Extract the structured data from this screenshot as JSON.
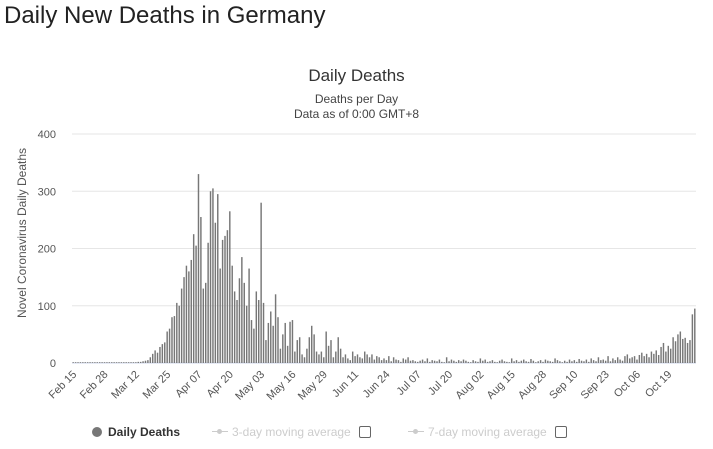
{
  "page": {
    "title": "Daily New Deaths in Germany"
  },
  "chart_data": {
    "type": "bar",
    "title": "Daily Deaths",
    "subtitle_1": "Deaths per Day",
    "subtitle_2": "Data as of 0:00 GMT+8",
    "xlabel": "",
    "ylabel": "Novel Coronavirus Daily Deaths",
    "ylim": [
      0,
      400
    ],
    "yticks": [
      0,
      100,
      200,
      300,
      400
    ],
    "grid": true,
    "bar_color": "#777777",
    "x_tick_labels": [
      "Feb 15",
      "Feb 28",
      "Mar 12",
      "Mar 25",
      "Apr 07",
      "Apr 20",
      "May 03",
      "May 16",
      "May 29",
      "Jun 11",
      "Jun 24",
      "Jul 07",
      "Jul 20",
      "Aug 02",
      "Aug 15",
      "Aug 28",
      "Sep 10",
      "Sep 23",
      "Oct 06",
      "Oct 19"
    ],
    "x_tick_every_days": 13,
    "start_label": "Feb 15",
    "series": [
      {
        "name": "Daily Deaths",
        "values": [
          0,
          0,
          0,
          0,
          0,
          0,
          0,
          0,
          0,
          0,
          0,
          0,
          0,
          0,
          0,
          0,
          0,
          0,
          0,
          0,
          0,
          0,
          0,
          0,
          0,
          1,
          1,
          2,
          2,
          3,
          4,
          5,
          10,
          16,
          22,
          18,
          28,
          33,
          36,
          55,
          60,
          80,
          82,
          105,
          100,
          130,
          150,
          170,
          160,
          180,
          225,
          205,
          330,
          255,
          130,
          140,
          210,
          300,
          305,
          245,
          295,
          165,
          215,
          222,
          232,
          265,
          170,
          125,
          110,
          148,
          185,
          140,
          100,
          165,
          75,
          60,
          125,
          110,
          280,
          105,
          40,
          70,
          90,
          65,
          120,
          80,
          25,
          50,
          70,
          30,
          72,
          75,
          20,
          40,
          45,
          15,
          10,
          25,
          45,
          65,
          50,
          20,
          15,
          20,
          10,
          55,
          30,
          40,
          10,
          20,
          45,
          25,
          10,
          15,
          8,
          5,
          20,
          12,
          15,
          10,
          8,
          20,
          15,
          10,
          15,
          6,
          12,
          10,
          5,
          8,
          5,
          12,
          3,
          10,
          6,
          5,
          2,
          8,
          6,
          10,
          4,
          5,
          3,
          2,
          4,
          6,
          3,
          8,
          2,
          5,
          4,
          3,
          6,
          2,
          1,
          10,
          3,
          6,
          4,
          2,
          5,
          3,
          6,
          4,
          2,
          1,
          5,
          3,
          2,
          8,
          4,
          6,
          2,
          3,
          5,
          2,
          1,
          4,
          6,
          3,
          2,
          1,
          8,
          3,
          5,
          2,
          4,
          6,
          3,
          2,
          7,
          4,
          1,
          3,
          5,
          2,
          6,
          4,
          3,
          2,
          8,
          5,
          3,
          1,
          4,
          2,
          6,
          3,
          5,
          2,
          7,
          4,
          3,
          6,
          2,
          8,
          5,
          3,
          10,
          5,
          6,
          4,
          12,
          3,
          8,
          5,
          10,
          6,
          4,
          12,
          15,
          8,
          10,
          12,
          6,
          14,
          18,
          12,
          16,
          10,
          20,
          16,
          22,
          14,
          28,
          35,
          20,
          30,
          25,
          45,
          38,
          50,
          55,
          42,
          44,
          35,
          40,
          85,
          95
        ]
      },
      {
        "name": "3-day moving average",
        "values": []
      },
      {
        "name": "7-day moving average",
        "values": []
      }
    ],
    "legend": {
      "position": "bottom",
      "items": [
        {
          "label": "Daily Deaths",
          "visible": true
        },
        {
          "label": "3-day moving average",
          "visible": false
        },
        {
          "label": "7-day moving average",
          "visible": false
        }
      ]
    }
  }
}
